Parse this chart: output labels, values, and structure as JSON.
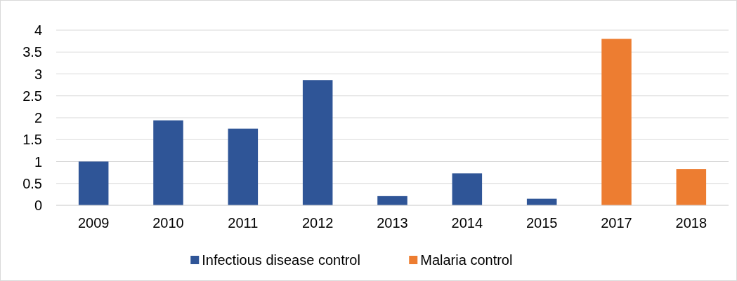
{
  "chart_data": {
    "type": "bar",
    "categories": [
      "2009",
      "2010",
      "2011",
      "2012",
      "2013",
      "2014",
      "2015",
      "2017",
      "2018"
    ],
    "series": [
      {
        "name": "Infectious disease control",
        "color": "#2f5597",
        "values": [
          1.0,
          1.94,
          1.75,
          2.86,
          0.21,
          0.73,
          0.15,
          null,
          null
        ]
      },
      {
        "name": "Malaria control",
        "color": "#ed7d31",
        "values": [
          null,
          null,
          null,
          null,
          null,
          null,
          null,
          3.8,
          0.83
        ]
      }
    ],
    "ylim": [
      0,
      4
    ],
    "yticks": [
      0,
      0.5,
      1,
      1.5,
      2,
      2.5,
      3,
      3.5,
      4
    ],
    "grid": "y",
    "legend": "bottom"
  }
}
